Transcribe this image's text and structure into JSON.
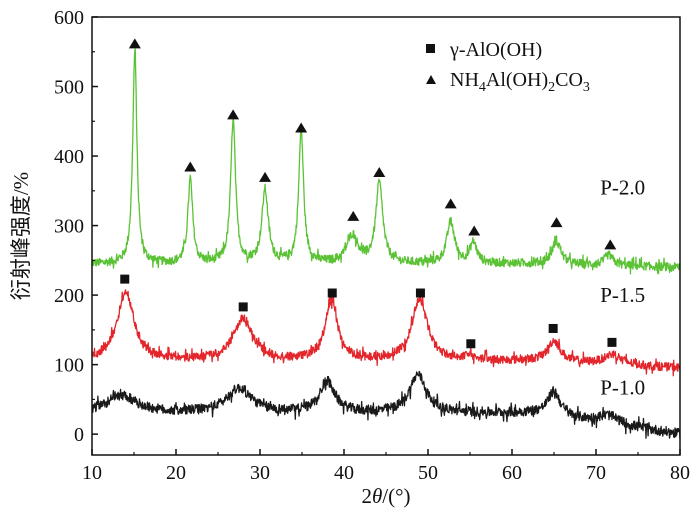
{
  "chart_data": {
    "type": "line",
    "title": "",
    "xlabel": "2θ/(°)",
    "ylabel": "衍射峰强度/%",
    "xlim": [
      10,
      80
    ],
    "ylim": [
      -30,
      600
    ],
    "x_ticks": [
      10,
      20,
      30,
      40,
      50,
      60,
      70,
      80
    ],
    "y_ticks": [
      0,
      100,
      200,
      300,
      400,
      500,
      600
    ],
    "grid": false,
    "legend": {
      "placement": "top-right",
      "entries": [
        {
          "name": "γ-AlO(OH)",
          "marker": "square",
          "color": "#111111"
        },
        {
          "name": "NH4Al(OH)2CO3",
          "marker": "triangle",
          "color": "#111111"
        }
      ]
    },
    "series": [
      {
        "name": "P-2.0",
        "color": "#5bc236",
        "baseline": 245,
        "noise": 6,
        "end_value": 240,
        "peaks": [
          {
            "x": 15.1,
            "height": 305,
            "width": 0.3
          },
          {
            "x": 21.7,
            "height": 120,
            "width": 0.35
          },
          {
            "x": 26.8,
            "height": 205,
            "width": 0.35
          },
          {
            "x": 30.6,
            "height": 105,
            "width": 0.45
          },
          {
            "x": 34.9,
            "height": 190,
            "width": 0.35
          },
          {
            "x": 41.0,
            "height": 40,
            "width": 0.8
          },
          {
            "x": 44.2,
            "height": 115,
            "width": 0.5
          },
          {
            "x": 52.7,
            "height": 60,
            "width": 0.55
          },
          {
            "x": 55.4,
            "height": 30,
            "width": 0.5
          },
          {
            "x": 65.3,
            "height": 35,
            "width": 0.6
          },
          {
            "x": 71.5,
            "height": 15,
            "width": 0.6
          }
        ],
        "markers": [
          {
            "x": 15.1,
            "y": 562,
            "symbol": "triangle"
          },
          {
            "x": 21.7,
            "y": 385,
            "symbol": "triangle"
          },
          {
            "x": 26.8,
            "y": 460,
            "symbol": "triangle"
          },
          {
            "x": 30.6,
            "y": 370,
            "symbol": "triangle"
          },
          {
            "x": 34.9,
            "y": 441,
            "symbol": "triangle"
          },
          {
            "x": 41.1,
            "y": 314,
            "symbol": "triangle"
          },
          {
            "x": 44.2,
            "y": 377,
            "symbol": "triangle"
          },
          {
            "x": 52.7,
            "y": 332,
            "symbol": "triangle"
          },
          {
            "x": 55.5,
            "y": 293,
            "symbol": "triangle"
          },
          {
            "x": 65.3,
            "y": 305,
            "symbol": "triangle"
          },
          {
            "x": 71.7,
            "y": 273,
            "symbol": "triangle"
          }
        ]
      },
      {
        "name": "P-1.5",
        "color": "#e3262c",
        "baseline": 105,
        "noise": 6,
        "end_value": 95,
        "peaks": [
          {
            "x": 14.0,
            "height": 100,
            "width": 1.2
          },
          {
            "x": 28.0,
            "height": 60,
            "width": 1.4
          },
          {
            "x": 38.5,
            "height": 85,
            "width": 0.9
          },
          {
            "x": 49.0,
            "height": 90,
            "width": 1.1
          },
          {
            "x": 55.0,
            "height": 5,
            "width": 1.0
          },
          {
            "x": 65.0,
            "height": 30,
            "width": 0.9
          },
          {
            "x": 72.0,
            "height": 15,
            "width": 1.2
          }
        ],
        "markers": [
          {
            "x": 13.9,
            "y": 223,
            "symbol": "square"
          },
          {
            "x": 28.0,
            "y": 183,
            "symbol": "square"
          },
          {
            "x": 38.6,
            "y": 203,
            "symbol": "square"
          },
          {
            "x": 49.1,
            "y": 203,
            "symbol": "square"
          },
          {
            "x": 55.1,
            "y": 130,
            "symbol": "square"
          },
          {
            "x": 64.9,
            "y": 152,
            "symbol": "square"
          },
          {
            "x": 71.9,
            "y": 132,
            "symbol": "square"
          }
        ]
      },
      {
        "name": "P-1.0",
        "color": "#1a1a1a",
        "baseline": 30,
        "noise": 7,
        "end_value": 0,
        "peaks": [
          {
            "x": 13.5,
            "height": 25,
            "width": 2.2
          },
          {
            "x": 27.5,
            "height": 35,
            "width": 1.8
          },
          {
            "x": 38.0,
            "height": 45,
            "width": 1.1
          },
          {
            "x": 48.8,
            "height": 55,
            "width": 1.2
          },
          {
            "x": 65.0,
            "height": 35,
            "width": 0.9
          },
          {
            "x": 71.5,
            "height": 12,
            "width": 1.5
          }
        ],
        "markers": []
      }
    ],
    "series_labels": [
      {
        "text": "P-2.0",
        "x": 70.5,
        "y": 345
      },
      {
        "text": "P-1.5",
        "x": 70.5,
        "y": 190
      },
      {
        "text": "P-1.0",
        "x": 70.5,
        "y": 57
      }
    ]
  }
}
